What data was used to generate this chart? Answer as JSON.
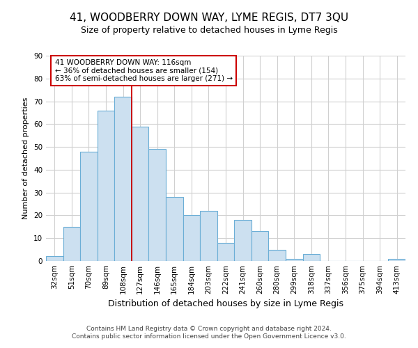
{
  "title": "41, WOODBERRY DOWN WAY, LYME REGIS, DT7 3QU",
  "subtitle": "Size of property relative to detached houses in Lyme Regis",
  "xlabel": "Distribution of detached houses by size in Lyme Regis",
  "ylabel": "Number of detached properties",
  "categories": [
    "32sqm",
    "51sqm",
    "70sqm",
    "89sqm",
    "108sqm",
    "127sqm",
    "146sqm",
    "165sqm",
    "184sqm",
    "203sqm",
    "222sqm",
    "241sqm",
    "260sqm",
    "280sqm",
    "299sqm",
    "318sqm",
    "337sqm",
    "356sqm",
    "375sqm",
    "394sqm",
    "413sqm"
  ],
  "values": [
    2,
    15,
    48,
    66,
    72,
    59,
    49,
    28,
    20,
    22,
    8,
    18,
    13,
    5,
    1,
    3,
    0,
    0,
    0,
    0,
    1
  ],
  "bar_color": "#cce0f0",
  "bar_edge_color": "#6baed6",
  "annotation_text": "41 WOODBERRY DOWN WAY: 116sqm\n← 36% of detached houses are smaller (154)\n63% of semi-detached houses are larger (271) →",
  "annotation_box_color": "#ffffff",
  "annotation_box_edge": "#cc0000",
  "ylim": [
    0,
    90
  ],
  "yticks": [
    0,
    10,
    20,
    30,
    40,
    50,
    60,
    70,
    80,
    90
  ],
  "footer_line1": "Contains HM Land Registry data © Crown copyright and database right 2024.",
  "footer_line2": "Contains public sector information licensed under the Open Government Licence v3.0.",
  "background_color": "#ffffff",
  "grid_color": "#d0d0d0",
  "title_fontsize": 11,
  "subtitle_fontsize": 9,
  "ylabel_fontsize": 8,
  "xlabel_fontsize": 9,
  "tick_fontsize": 7.5,
  "footer_fontsize": 6.5,
  "annotation_fontsize": 7.5,
  "red_line_bin_index": 5,
  "n_bins": 21
}
